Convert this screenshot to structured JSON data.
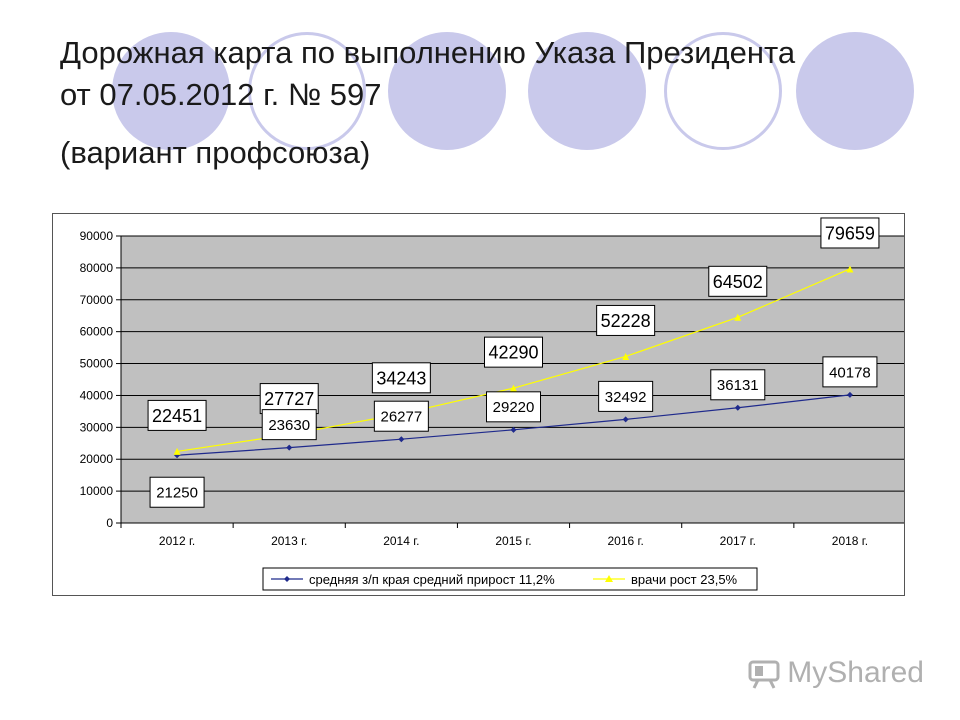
{
  "slide": {
    "title": "Дорожная карта по выполнению Указа Президента от 07.05.2012 г. № 597",
    "subtitle": "(вариант профсоюза)",
    "watermark": "MyShared"
  },
  "colors": {
    "circle_fill": "#c9c9eb",
    "plot_bg": "#c0c0c0",
    "series1": "#1f2a8c",
    "series2": "#ffff00"
  },
  "chart_data": {
    "type": "line",
    "title": "",
    "xlabel": "",
    "ylabel": "",
    "categories": [
      "2012 г.",
      "2013 г.",
      "2014 г.",
      "2015 г.",
      "2016 г.",
      "2017 г.",
      "2018 г."
    ],
    "ylim": [
      0,
      90000
    ],
    "yticks": [
      0,
      10000,
      20000,
      30000,
      40000,
      50000,
      60000,
      70000,
      80000,
      90000
    ],
    "grid": true,
    "legend_position": "bottom",
    "series": [
      {
        "name": "средняя з/п края средний прирост 11,2%",
        "marker": "diamond",
        "values": [
          21250,
          23630,
          26277,
          29220,
          32492,
          36131,
          40178
        ]
      },
      {
        "name": "врачи рост 23,5%",
        "marker": "triangle",
        "values": [
          22451,
          27727,
          34243,
          42290,
          52228,
          64502,
          79659
        ]
      }
    ]
  }
}
